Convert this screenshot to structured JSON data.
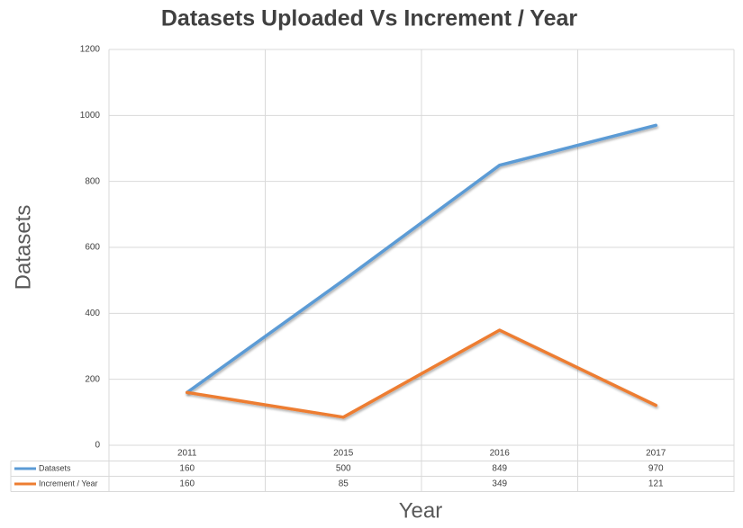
{
  "chart_data": {
    "type": "line",
    "title": "Datasets Uploaded Vs Increment / Year",
    "x_label": "Year",
    "y_label": "Datasets",
    "categories": [
      "2011",
      "2015",
      "2016",
      "2017"
    ],
    "series": [
      {
        "name": "Datasets",
        "color": "#5b9bd5",
        "values": [
          160,
          500,
          849,
          970
        ]
      },
      {
        "name": "Increment / Year",
        "color": "#ed7d31",
        "values": [
          160,
          85,
          349,
          121
        ]
      }
    ],
    "ylim": [
      0,
      1200
    ],
    "yticks": [
      0,
      200,
      400,
      600,
      800,
      1000,
      1200
    ],
    "grid": true
  }
}
